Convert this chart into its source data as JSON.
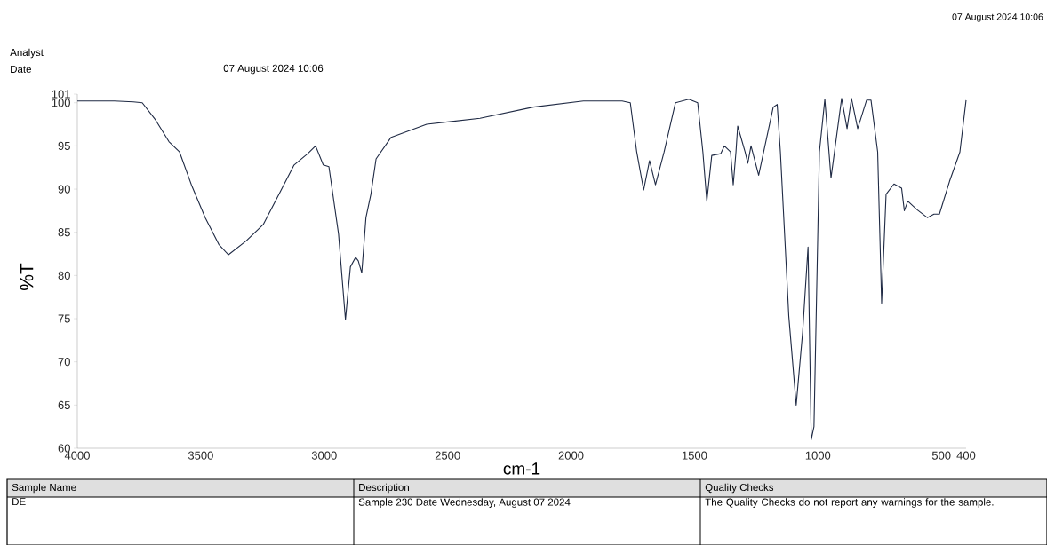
{
  "chart_data": {
    "type": "line",
    "xlabel": "cm-1",
    "ylabel": "%T",
    "annotations": [
      "07 August 2024 10:06",
      "Analyst",
      "Date",
      "07 August 2024 10:06",
      "Sample Name",
      "Description",
      "Quality Checks",
      "DE",
      "Sample 230 Date Wednesday, August 07 2024",
      "The Quality Checks do not report any warnings for the sample."
    ],
    "xlim": [
      4000,
      400
    ],
    "xticks": [
      4000,
      3500,
      3000,
      2500,
      2000,
      1500,
      1000,
      500,
      400
    ],
    "ylim": [
      60,
      101
    ],
    "yticks": [
      60,
      65,
      70,
      75,
      80,
      85,
      90,
      95,
      100,
      101
    ],
    "series": [
      {
        "color": "#1f2a44",
        "x": [
          4000,
          3850,
          3773,
          3737,
          3683,
          3629,
          3586,
          3538,
          3482,
          3427,
          3388,
          3316,
          3247,
          3178,
          3122,
          3067,
          3035,
          3004,
          2981,
          2942,
          2914,
          2894,
          2873,
          2862,
          2848,
          2831,
          2811,
          2790,
          2729,
          2585,
          2369,
          2153,
          1950,
          1793,
          1760,
          1734,
          1706,
          1682,
          1658,
          1623,
          1577,
          1523,
          1487,
          1466,
          1450,
          1430,
          1394,
          1379,
          1354,
          1343,
          1332,
          1325,
          1295,
          1284,
          1271,
          1240,
          1181,
          1165,
          1152,
          1118,
          1088,
          1062,
          1040,
          1027,
          1016,
          994,
          972,
          947,
          904,
          882,
          864,
          839,
          803,
          785,
          758,
          742,
          724,
          692,
          661,
          650,
          636,
          598,
          557,
          530,
          508,
          467,
          425,
          400
        ],
        "values": [
          100.2,
          100.2,
          100.1,
          100,
          98,
          95.5,
          94.3,
          90.5,
          86.7,
          83.6,
          82.4,
          84.0,
          85.9,
          89.7,
          92.8,
          94.1,
          95.0,
          92.8,
          92.6,
          84.8,
          74.9,
          81.0,
          82.1,
          81.7,
          80.3,
          86.7,
          89.4,
          93.5,
          96.0,
          97.5,
          98.2,
          99.5,
          100.2,
          100.2,
          100,
          94.3,
          89.9,
          93.3,
          90.5,
          94.3,
          100,
          100.4,
          100,
          94.3,
          88.6,
          93.9,
          94.1,
          95,
          94.3,
          90.5,
          94.3,
          97.3,
          94.3,
          93.0,
          95,
          91.6,
          99.5,
          99.8,
          94.3,
          75.3,
          65.0,
          73.4,
          83.3,
          61.0,
          62.5,
          94.3,
          100.4,
          91.3,
          100.5,
          97,
          100.5,
          97,
          100.3,
          100.3,
          94.3,
          76.8,
          89.4,
          90.6,
          90.1,
          87.5,
          88.6,
          87.6,
          86.7,
          87.1,
          87.1,
          90.9,
          94.3,
          100.3
        ]
      }
    ]
  }
}
